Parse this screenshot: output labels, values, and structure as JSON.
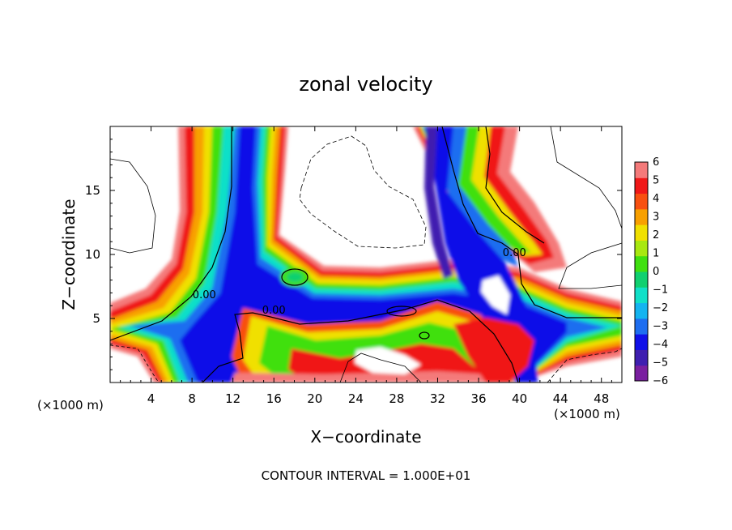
{
  "chart_data": {
    "type": "heatmap",
    "title": "zonal velocity",
    "xlabel": "X−coordinate",
    "ylabel": "Z−coordinate",
    "x_unit_left": "(×1000 m)",
    "x_unit_right": "(×1000 m)",
    "xlim": [
      0,
      50
    ],
    "ylim": [
      0,
      20
    ],
    "x_ticks": [
      4,
      8,
      12,
      16,
      20,
      24,
      28,
      32,
      36,
      40,
      44,
      48
    ],
    "x_tick_labels": [
      "4",
      "8",
      "12",
      "16",
      "20",
      "24",
      "28",
      "32",
      "36",
      "40",
      "44",
      "48"
    ],
    "y_ticks": [
      5,
      10,
      15
    ],
    "y_tick_labels": [
      "5",
      "10",
      "15"
    ],
    "colorbar": {
      "levels": [
        -6,
        -5,
        -4,
        -3,
        -2,
        -1,
        0,
        1,
        2,
        3,
        4,
        5,
        6
      ],
      "labels": [
        "−6",
        "−5",
        "−4",
        "−3",
        "−2",
        "−1",
        "0",
        "1",
        "2",
        "3",
        "4",
        "5",
        "6"
      ],
      "colors": [
        "#7a1fa0",
        "#3f1fb0",
        "#1010e8",
        "#1e6ef0",
        "#14b4f0",
        "#10e0c8",
        "#10d070",
        "#40e010",
        "#a8e810",
        "#f0e000",
        "#f8a000",
        "#f85010",
        "#f01818",
        "#f47a7a"
      ]
    },
    "contour_labels": [
      {
        "text": "0.00",
        "x": 9.2,
        "y": 6.7
      },
      {
        "text": "0.00",
        "x": 16.0,
        "y": 5.5
      },
      {
        "text": "0.00",
        "x": 39.5,
        "y": 10.0
      }
    ],
    "contour_interval_text": "CONTOUR INTERVAL = 1.000E+01"
  }
}
